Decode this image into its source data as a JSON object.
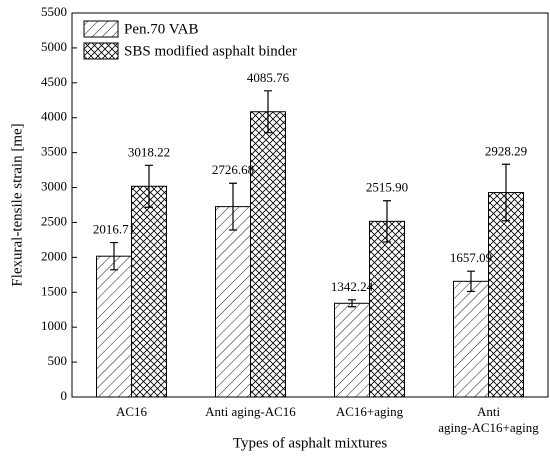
{
  "chart_data": {
    "type": "bar",
    "y_label": "Flexural-tensile strain [me]",
    "x_label": "Types of asphalt mixtures",
    "categories": [
      "AC16",
      "Anti aging-AC16",
      "AC16+aging",
      "Anti\naging-AC16+aging"
    ],
    "series": [
      {
        "name": "Pen.70 VAB",
        "color": "#000000",
        "hatch": "/",
        "values": [
          2016.71,
          2726.68,
          1342.24,
          1657.09
        ],
        "errors": [
          195,
          335,
          50,
          145
        ]
      },
      {
        "name": "SBS modified asphalt binder",
        "color": "#000000",
        "hatch": "x",
        "values": [
          3018.22,
          4085.76,
          2515.9,
          2928.29
        ],
        "value_labels": [
          "3018.22",
          "4085.76",
          "2515.90",
          "2928.29"
        ],
        "errors": [
          300,
          300,
          295,
          405
        ]
      }
    ],
    "ylim": [
      0,
      5500
    ],
    "yticks": [
      0,
      500,
      1000,
      1500,
      2000,
      2500,
      3000,
      3500,
      4000,
      4500,
      5000,
      5500
    ],
    "legend": "upper left"
  }
}
